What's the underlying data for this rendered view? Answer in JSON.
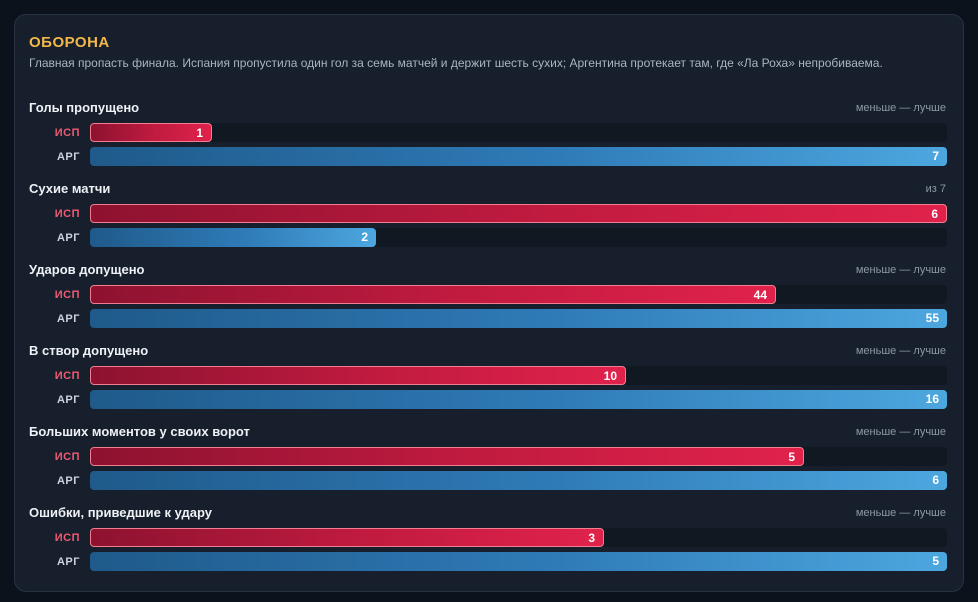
{
  "title": "ОБОРОНА",
  "subtitle": "Главная пропасть финала. Испания пропустила один гол за семь матчей и держит шесть сухих; Аргентина протекает там, где «Ла Роха» непробиваема.",
  "teams": [
    "ИСП",
    "АРГ"
  ],
  "colors": {
    "esp": "#e0224b",
    "arg": "#4da7df",
    "title": "#f2b84b"
  },
  "chart_data": {
    "type": "bar",
    "orientation": "horizontal",
    "series_names": [
      "ИСП",
      "АРГ"
    ],
    "metrics": [
      {
        "name": "Голы пропущено",
        "note": "меньше — лучше",
        "max": 7,
        "values": [
          1,
          7
        ]
      },
      {
        "name": "Сухие матчи",
        "note": "из 7",
        "max": 6,
        "values": [
          6,
          2
        ]
      },
      {
        "name": "Ударов допущено",
        "note": "меньше — лучше",
        "max": 55,
        "values": [
          44,
          55
        ]
      },
      {
        "name": "В створ допущено",
        "note": "меньше — лучше",
        "max": 16,
        "values": [
          10,
          16
        ]
      },
      {
        "name": "Больших моментов у своих ворот",
        "note": "меньше — лучше",
        "max": 6,
        "values": [
          5,
          6
        ]
      },
      {
        "name": "Ошибки, приведшие к удару",
        "note": "меньше — лучше",
        "max": 5,
        "values": [
          3,
          5
        ]
      }
    ]
  }
}
